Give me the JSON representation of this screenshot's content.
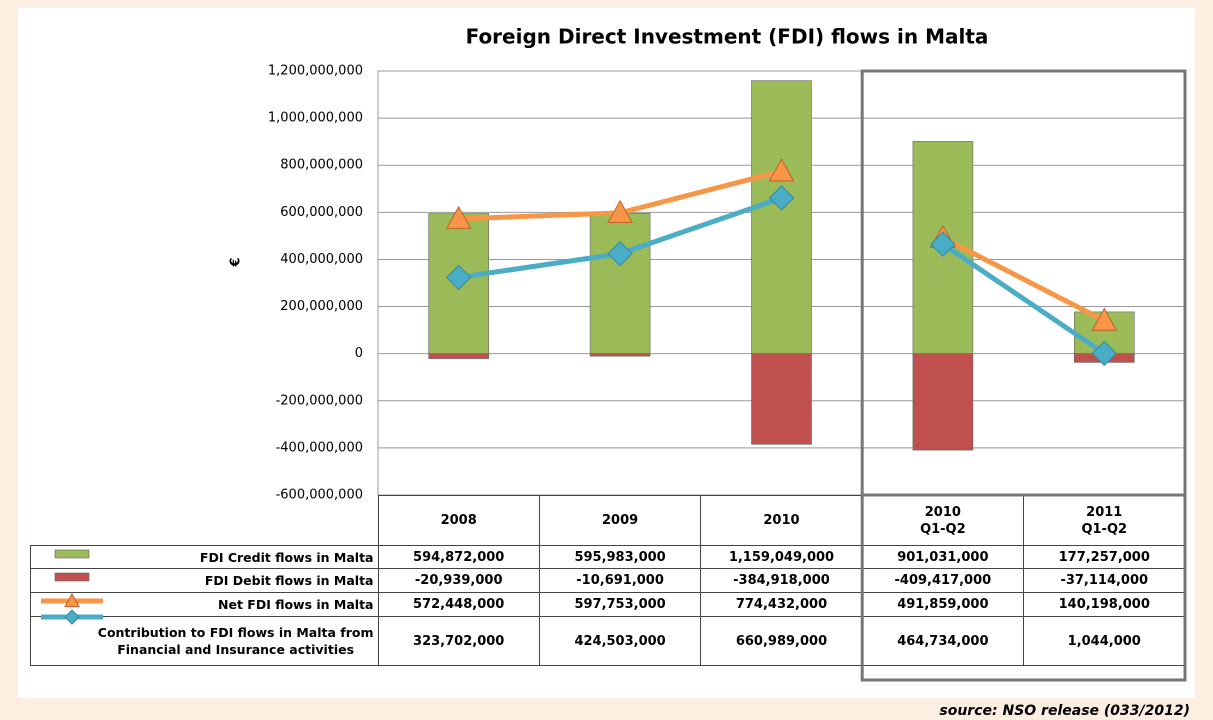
{
  "chart_data": {
    "type": "bar",
    "title": "Foreign Direct Investment (FDI) flows in Malta",
    "y_label": "€",
    "source": "source: NSO release (033/2012)",
    "categories": [
      "2008",
      "2009",
      "2010",
      "2010\nQ1-Q2",
      "2011\nQ1-Q2"
    ],
    "highlight_box_start": 3,
    "ylim": [
      -600000000,
      1200000000
    ],
    "yticks": [
      {
        "value": -600000000,
        "label": "-600,000,000"
      },
      {
        "value": -400000000,
        "label": "-400,000,000"
      },
      {
        "value": -200000000,
        "label": "-200,000,000"
      },
      0,
      {
        "value": 200000000,
        "label": "200,000,000"
      },
      {
        "value": 400000000,
        "label": "400,000,000"
      },
      {
        "value": 600000000,
        "label": "600,000,000"
      },
      {
        "value": 800000000,
        "label": "800,000,000"
      },
      {
        "value": 1000000000,
        "label": "1,000,000,000"
      },
      {
        "value": 1200000000,
        "label": "1,200,000,000"
      }
    ],
    "grid": true,
    "series": [
      {
        "name": "FDI Credit flows in Malta",
        "type": "bar",
        "color": "#9bbb59",
        "values": [
          594872000,
          595983000,
          1159049000,
          901031000,
          177257000
        ],
        "value_labels": [
          "594,872,000",
          "595,983,000",
          "1,159,049,000",
          "901,031,000",
          "177,257,000"
        ]
      },
      {
        "name": "FDI Debit flows in Malta",
        "type": "bar",
        "color": "#c0504d",
        "values": [
          -20939000,
          -10691000,
          -384918000,
          -409417000,
          -37114000
        ],
        "value_labels": [
          "-20,939,000",
          "-10,691,000",
          "-384,918,000",
          "-409,417,000",
          "-37,114,000"
        ]
      },
      {
        "name": "Net FDI flows in Malta",
        "type": "line",
        "marker": "triangle",
        "color": "#f79646",
        "values": [
          572448000,
          597753000,
          774432000,
          491859000,
          140198000
        ],
        "value_labels": [
          "572,448,000",
          "597,753,000",
          "774,432,000",
          "491,859,000",
          "140,198,000"
        ]
      },
      {
        "name": "Contribution to FDI flows in Malta from\nFinancial and Insurance activities",
        "type": "line",
        "marker": "diamond",
        "color": "#4bacc6",
        "values": [
          323702000,
          424503000,
          660989000,
          464734000,
          1044000
        ],
        "value_labels": [
          "323,702,000",
          "424,503,000",
          "660,989,000",
          "464,734,000",
          "1,044,000"
        ]
      }
    ]
  }
}
